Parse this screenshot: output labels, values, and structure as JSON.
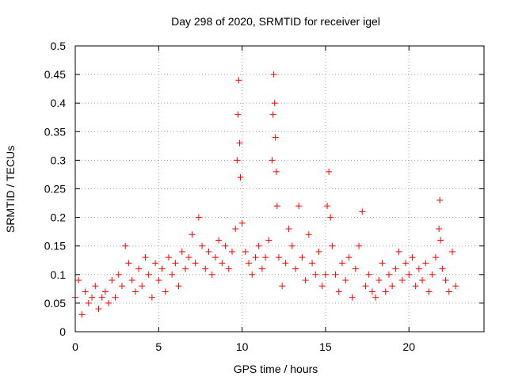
{
  "chart_data": {
    "type": "scatter",
    "title": "Day 298 of 2020, SRMTID for receiver igel",
    "xlabel": "GPS time / hours",
    "ylabel": "SRMTID / TECUs",
    "xlim": [
      0,
      24.5
    ],
    "ylim": [
      0,
      0.5
    ],
    "x_ticks": [
      0,
      5,
      10,
      15,
      20
    ],
    "x_tick_labels": [
      "0",
      "5",
      "10",
      "15",
      "20"
    ],
    "y_ticks": [
      0,
      0.05,
      0.1,
      0.15,
      0.2,
      0.25,
      0.3,
      0.35,
      0.4,
      0.45,
      0.5
    ],
    "y_tick_labels": [
      "0",
      "0.05",
      "0.1",
      "0.15",
      "0.2",
      "0.25",
      "0.3",
      "0.35",
      "0.4",
      "0.45",
      "0.5"
    ],
    "grid": true,
    "marker": "+",
    "series": [
      {
        "name": "SRMTID",
        "color": "#ff0000",
        "x": [
          0.0,
          0.2,
          0.4,
          0.6,
          0.8,
          1.0,
          1.2,
          1.4,
          1.6,
          1.8,
          2.0,
          2.2,
          2.4,
          2.6,
          2.8,
          3.0,
          3.2,
          3.4,
          3.6,
          3.8,
          4.0,
          4.2,
          4.4,
          4.6,
          4.8,
          5.0,
          5.2,
          5.4,
          5.6,
          5.8,
          6.0,
          6.2,
          6.4,
          6.6,
          6.8,
          7.0,
          7.2,
          7.4,
          7.6,
          7.8,
          8.0,
          8.2,
          8.4,
          8.6,
          8.8,
          9.0,
          9.2,
          9.4,
          9.6,
          9.7,
          9.75,
          9.8,
          9.85,
          9.9,
          10.0,
          10.2,
          10.4,
          10.6,
          10.8,
          11.0,
          11.2,
          11.4,
          11.6,
          11.8,
          11.85,
          11.9,
          11.95,
          12.0,
          12.05,
          12.1,
          12.2,
          12.4,
          12.6,
          12.8,
          13.0,
          13.2,
          13.4,
          13.6,
          13.8,
          14.0,
          14.2,
          14.4,
          14.6,
          14.8,
          15.0,
          15.1,
          15.2,
          15.3,
          15.4,
          15.6,
          15.8,
          16.0,
          16.2,
          16.4,
          16.6,
          16.8,
          17.0,
          17.2,
          17.4,
          17.6,
          17.8,
          18.0,
          18.2,
          18.4,
          18.6,
          18.8,
          19.0,
          19.2,
          19.4,
          19.6,
          19.8,
          20.0,
          20.2,
          20.4,
          20.6,
          20.8,
          21.0,
          21.2,
          21.4,
          21.6,
          21.8,
          21.85,
          21.9,
          22.0,
          22.2,
          22.4,
          22.6,
          22.8
        ],
        "y": [
          0.06,
          0.09,
          0.03,
          0.07,
          0.05,
          0.06,
          0.08,
          0.04,
          0.06,
          0.07,
          0.05,
          0.09,
          0.06,
          0.1,
          0.08,
          0.15,
          0.12,
          0.09,
          0.07,
          0.11,
          0.08,
          0.13,
          0.1,
          0.06,
          0.12,
          0.09,
          0.11,
          0.07,
          0.13,
          0.1,
          0.12,
          0.08,
          0.14,
          0.11,
          0.13,
          0.17,
          0.12,
          0.2,
          0.15,
          0.11,
          0.14,
          0.1,
          0.13,
          0.16,
          0.12,
          0.15,
          0.11,
          0.14,
          0.18,
          0.3,
          0.38,
          0.44,
          0.33,
          0.27,
          0.19,
          0.14,
          0.12,
          0.1,
          0.13,
          0.15,
          0.11,
          0.13,
          0.16,
          0.3,
          0.38,
          0.45,
          0.4,
          0.34,
          0.28,
          0.22,
          0.13,
          0.08,
          0.12,
          0.18,
          0.15,
          0.11,
          0.22,
          0.13,
          0.09,
          0.17,
          0.12,
          0.1,
          0.14,
          0.08,
          0.1,
          0.22,
          0.28,
          0.2,
          0.15,
          0.1,
          0.07,
          0.12,
          0.09,
          0.13,
          0.06,
          0.11,
          0.15,
          0.21,
          0.08,
          0.1,
          0.07,
          0.06,
          0.09,
          0.12,
          0.07,
          0.1,
          0.08,
          0.11,
          0.14,
          0.09,
          0.12,
          0.1,
          0.13,
          0.08,
          0.11,
          0.09,
          0.12,
          0.07,
          0.1,
          0.13,
          0.18,
          0.23,
          0.16,
          0.11,
          0.09,
          0.07,
          0.14,
          0.08
        ]
      }
    ]
  }
}
